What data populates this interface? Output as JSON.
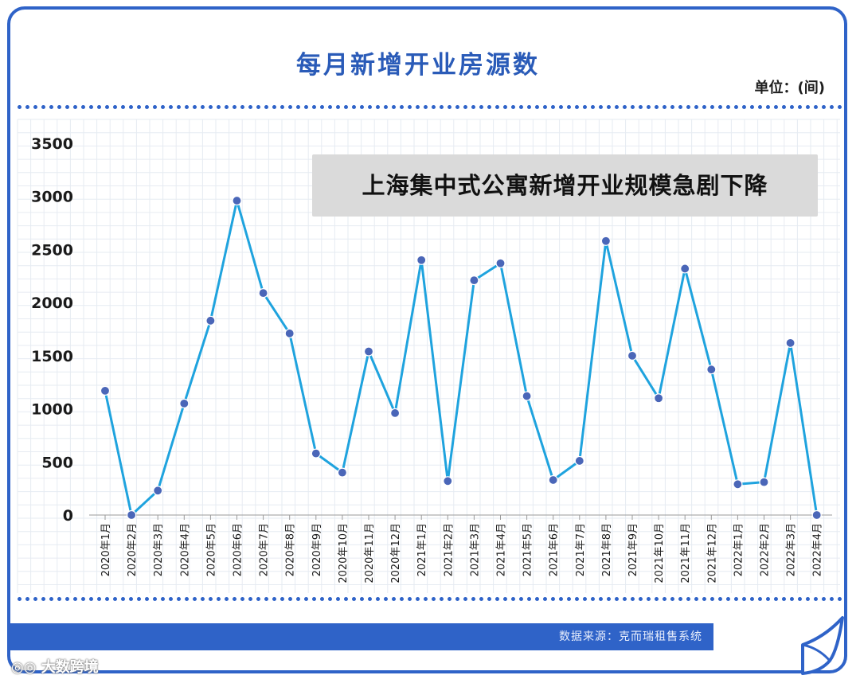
{
  "header": {
    "title": "每月新增开业房源数",
    "unit": "单位：(间)",
    "subtitle": "上海集中式公寓新增开业规模急剧下降"
  },
  "footer": {
    "source": "数据来源：克而瑞租售系统",
    "watermark": "大数跨境"
  },
  "colors": {
    "frame": "#2f63c8",
    "title": "#2a5bb8",
    "line": "#1fa3de",
    "point": "#4a66b8",
    "grid": "#e6ebf2"
  },
  "chart_data": {
    "type": "line",
    "title": "每月新增开业房源数",
    "ylabel": "",
    "xlabel": "",
    "ylim": [
      0,
      3500
    ],
    "yticks": [
      0,
      500,
      1000,
      1500,
      2000,
      2500,
      3000,
      3500
    ],
    "grid": true,
    "categories": [
      "2020年1月",
      "2020年2月",
      "2020年3月",
      "2020年4月",
      "2020年5月",
      "2020年6月",
      "2020年7月",
      "2020年8月",
      "2020年9月",
      "2020年10月",
      "2020年11月",
      "2020年12月",
      "2021年1月",
      "2021年2月",
      "2021年3月",
      "2021年4月",
      "2021年5月",
      "2021年6月",
      "2021年7月",
      "2021年8月",
      "2021年9月",
      "2021年10月",
      "2021年11月",
      "2021年12月",
      "2022年1月",
      "2022年2月",
      "2022年3月",
      "2022年4月"
    ],
    "series": [
      {
        "values": [
          1170,
          0,
          230,
          1050,
          1830,
          2960,
          2090,
          1710,
          580,
          400,
          1540,
          960,
          2400,
          320,
          2210,
          2370,
          1120,
          330,
          510,
          2580,
          1500,
          1100,
          2320,
          1370,
          290,
          310,
          1620,
          0
        ]
      }
    ]
  }
}
